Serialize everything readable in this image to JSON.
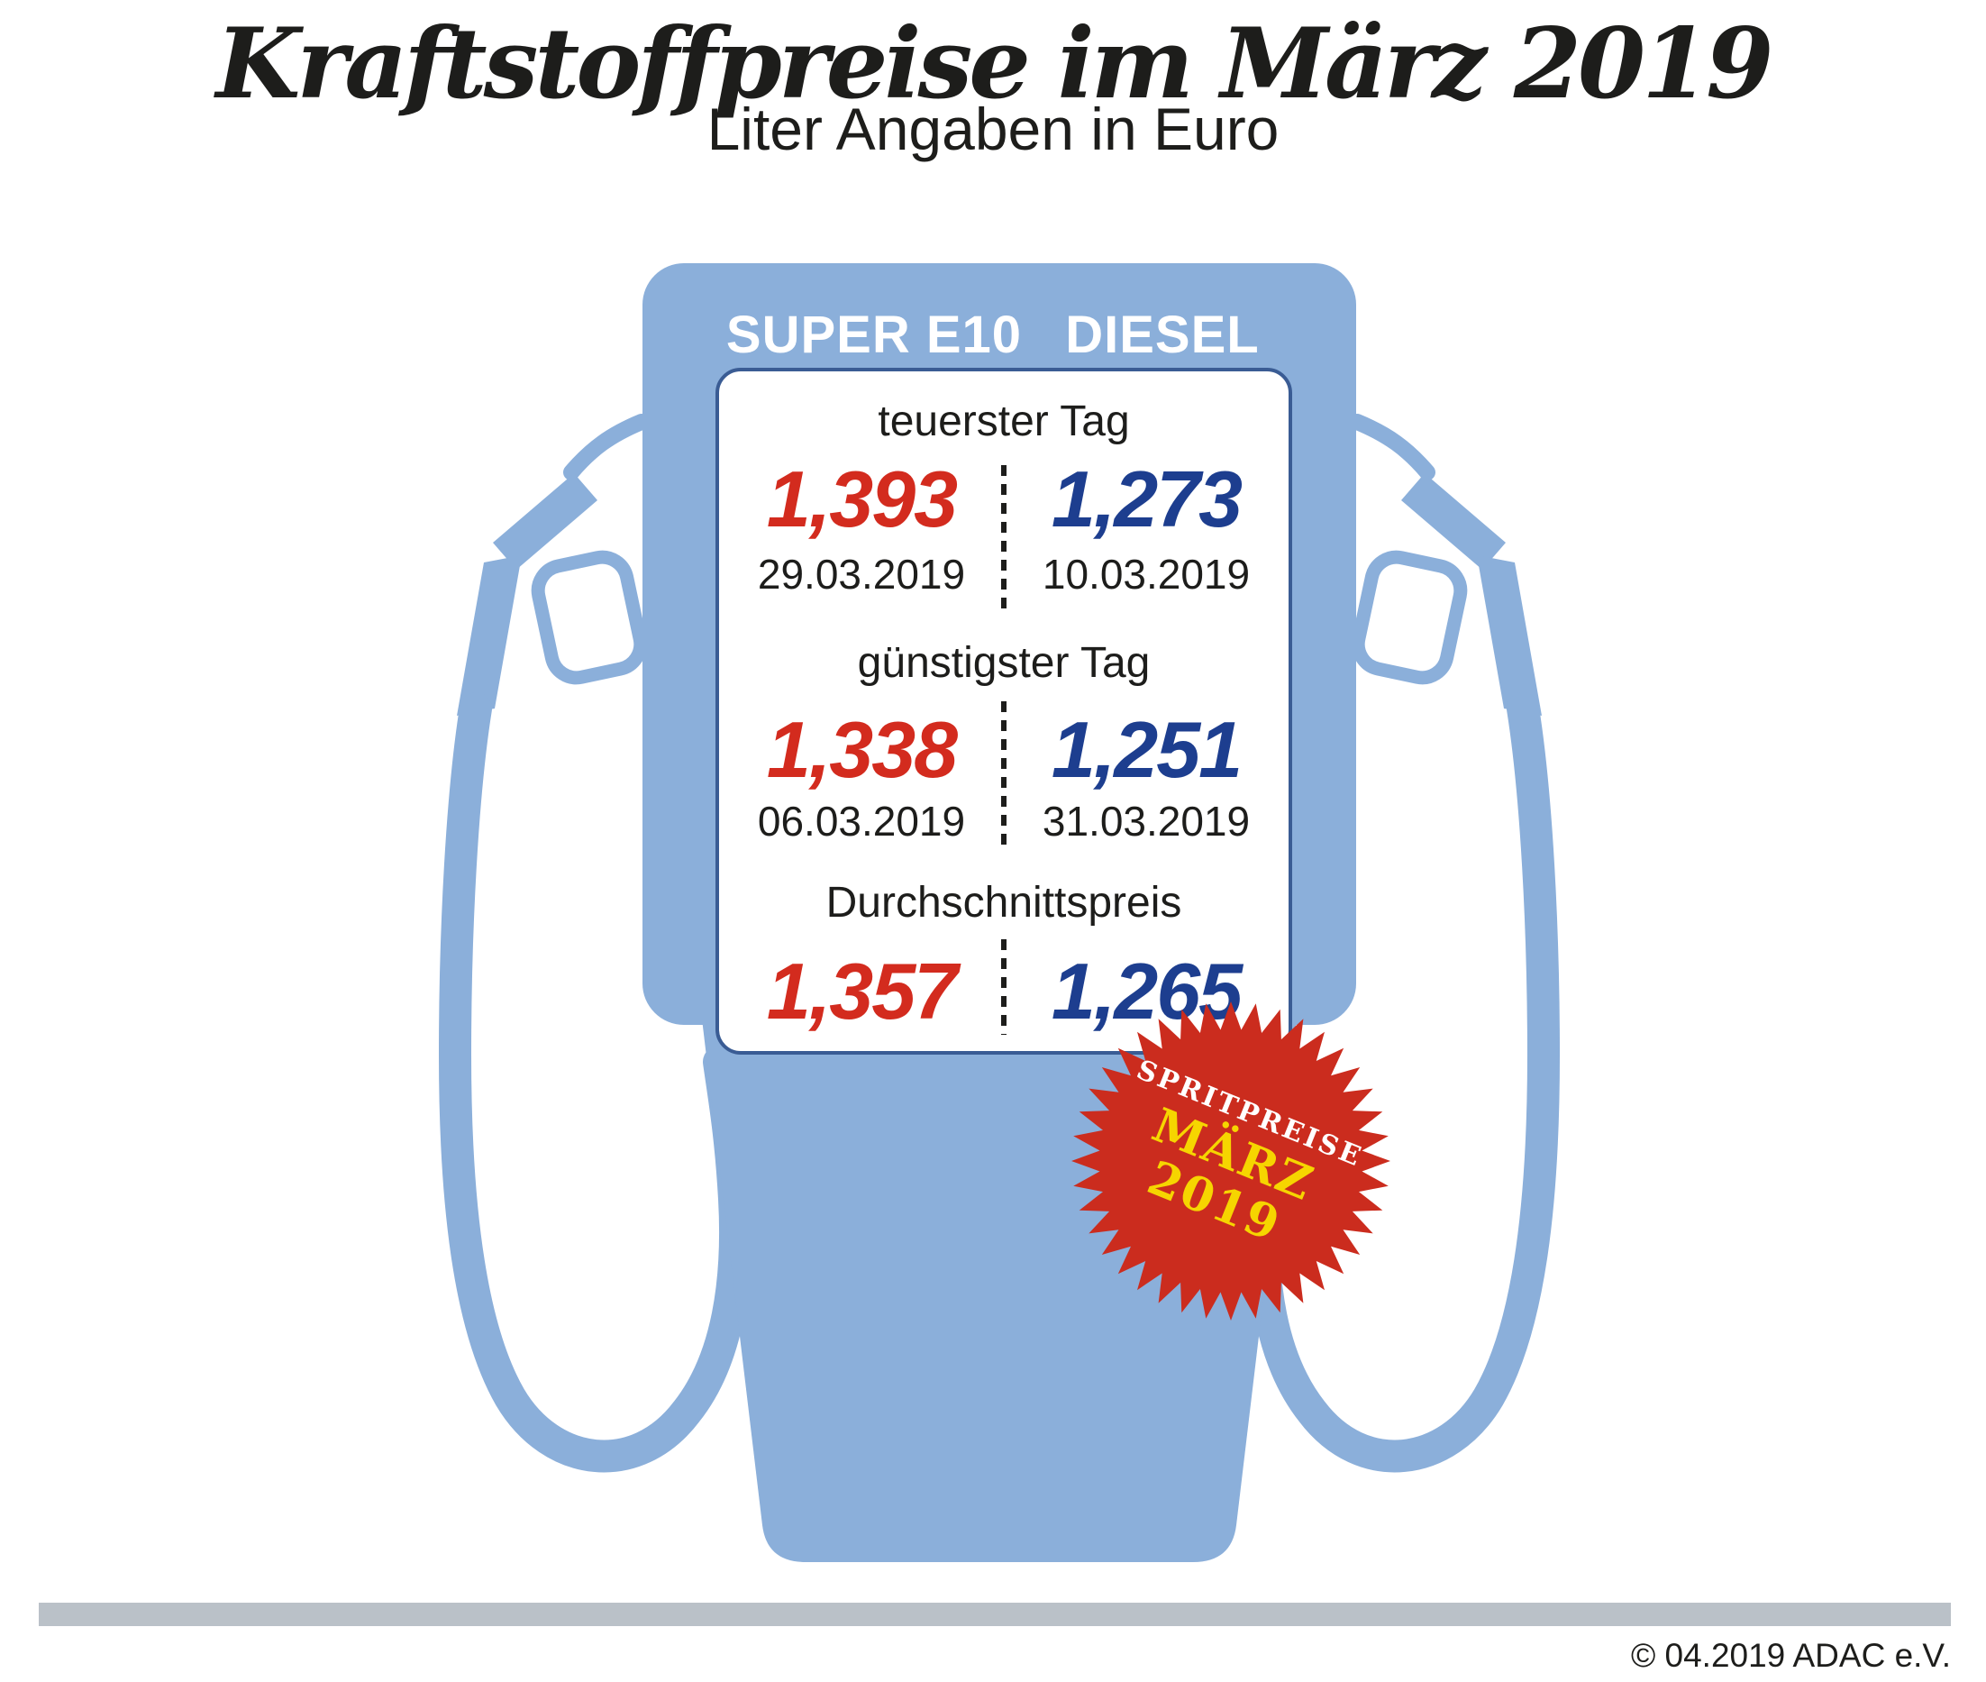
{
  "header": {
    "title": "Kraftstoffpreise im März 2019",
    "subtitle": "Liter Angaben in Euro"
  },
  "pump": {
    "columns": [
      "SUPER E10",
      "DIESEL"
    ],
    "sections": [
      {
        "label": "teuerster Tag",
        "values": [
          {
            "fuel": "SUPER E10",
            "price": "1,393",
            "date": "29.03.2019"
          },
          {
            "fuel": "DIESEL",
            "price": "1,273",
            "date": "10.03.2019"
          }
        ]
      },
      {
        "label": "günstigster Tag",
        "values": [
          {
            "fuel": "SUPER E10",
            "price": "1,338",
            "date": "06.03.2019"
          },
          {
            "fuel": "DIESEL",
            "price": "1,251",
            "date": "31.03.2019"
          }
        ]
      },
      {
        "label": "Durchschnittspreis",
        "values": [
          {
            "fuel": "SUPER E10",
            "price": "1,357"
          },
          {
            "fuel": "DIESEL",
            "price": "1,265"
          }
        ]
      }
    ]
  },
  "badge": {
    "line1": "SPRITPREISE",
    "line2": "MÄRZ",
    "line3": "2019"
  },
  "footer": {
    "copyright": "© 04.2019 ADAC e.V."
  },
  "colors": {
    "pump_blue": "#8bafda",
    "panel_border": "#3a5c94",
    "super_e10_red": "#d32b1e",
    "diesel_blue": "#1d3e8f",
    "badge_red": "#cb2c1e",
    "badge_yellow": "#f6d500",
    "footer_gray": "#bac1c8",
    "text_black": "#1d1d1b"
  },
  "chart_data": {
    "type": "table",
    "title": "Kraftstoffpreise im März 2019",
    "subtitle": "Liter Angaben in Euro",
    "unit": "Euro pro Liter",
    "columns": [
      "SUPER E10",
      "DIESEL"
    ],
    "rows": [
      {
        "label": "teuerster Tag",
        "super_e10": 1.393,
        "super_e10_date": "29.03.2019",
        "diesel": 1.273,
        "diesel_date": "10.03.2019"
      },
      {
        "label": "günstigster Tag",
        "super_e10": 1.338,
        "super_e10_date": "06.03.2019",
        "diesel": 1.251,
        "diesel_date": "31.03.2019"
      },
      {
        "label": "Durchschnittspreis",
        "super_e10": 1.357,
        "diesel": 1.265
      }
    ]
  }
}
